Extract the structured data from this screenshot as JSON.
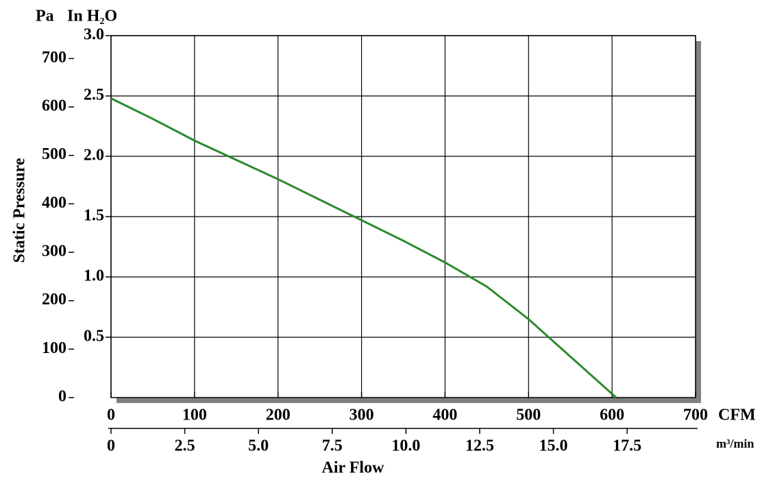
{
  "chart_data": {
    "type": "line",
    "y_label": "Static Pressure",
    "x_label": "Air Flow",
    "x_unit": "CFM",
    "x2_unit": "m³/min",
    "y_unit": "In H₂O",
    "y2_unit": "Pa",
    "xlim": [
      0,
      700
    ],
    "xticks": [
      0,
      100,
      200,
      300,
      400,
      500,
      600,
      700
    ],
    "x2lim": [
      0,
      19.82
    ],
    "x2ticks": [
      0,
      2.5,
      {
        "value": 5,
        "label": "5.0"
      },
      7.5,
      {
        "value": 10,
        "label": "10.0"
      },
      12.5,
      {
        "value": 15,
        "label": "15.0"
      },
      17.5
    ],
    "ylim": [
      0,
      3
    ],
    "yticks": [
      0.5,
      {
        "value": 1,
        "label": "1.0"
      },
      1.5,
      {
        "value": 2,
        "label": "2.0"
      },
      2.5,
      {
        "value": 3,
        "label": "3.0"
      }
    ],
    "y2lim": [
      0,
      747.27
    ],
    "y2ticks": [
      0,
      100,
      200,
      300,
      400,
      500,
      600,
      700
    ],
    "grid": true,
    "series": [
      {
        "color": "#2a8a2a",
        "x": [
          0,
          50,
          100,
          150,
          200,
          250,
          300,
          350,
          400,
          450,
          500,
          550,
          605
        ],
        "values": [
          2.48,
          2.31,
          2.13,
          1.97,
          1.81,
          1.64,
          1.47,
          1.3,
          1.12,
          0.92,
          0.65,
          0.34,
          0
        ]
      }
    ]
  }
}
